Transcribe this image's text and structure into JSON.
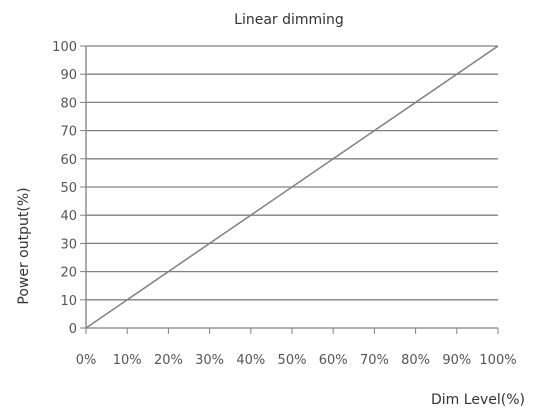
{
  "chart_data": {
    "type": "line",
    "title": "Linear dimming",
    "xlabel": "Dim Level(%)",
    "ylabel": "Power output(%)",
    "x_ticks": [
      "0%",
      "10%",
      "20%",
      "30%",
      "40%",
      "50%",
      "60%",
      "70%",
      "80%",
      "90%",
      "100%"
    ],
    "y_ticks": [
      "0",
      "10",
      "20",
      "30",
      "40",
      "50",
      "60",
      "70",
      "80",
      "90",
      "100"
    ],
    "xlim": [
      0,
      100
    ],
    "ylim": [
      0,
      100
    ],
    "grid": "horizontal",
    "series": [
      {
        "x": [
          0,
          100
        ],
        "y": [
          0,
          100
        ],
        "color": "#808080"
      }
    ],
    "colors": {
      "grid": "#808080",
      "axis": "#808080",
      "line": "#808080"
    }
  }
}
